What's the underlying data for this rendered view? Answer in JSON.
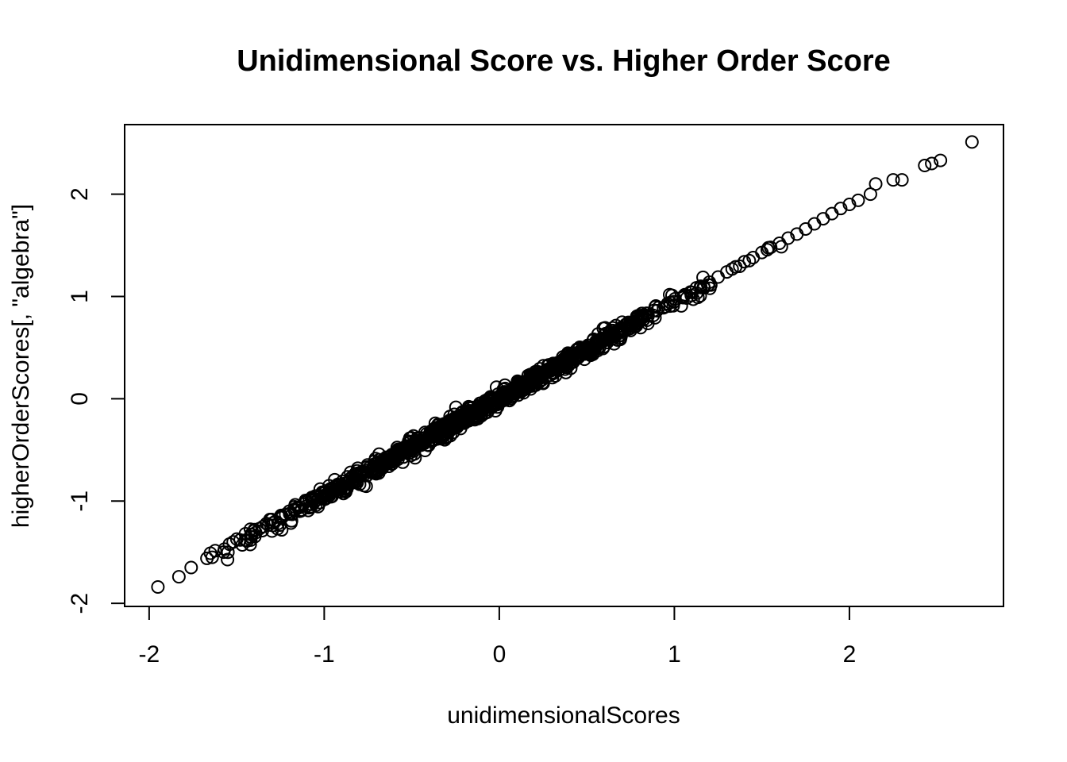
{
  "chart_data": {
    "type": "scatter",
    "title": "Unidimensional Score vs. Higher Order Score",
    "xlabel": "unidimensionalScores",
    "ylabel": "higherOrderScores[, \"algebra\"]",
    "xlim": [
      -2.14,
      2.88
    ],
    "ylim": [
      -2.03,
      2.68
    ],
    "xticks": [
      -2,
      -1,
      0,
      1,
      2
    ],
    "yticks": [
      -2,
      -1,
      0,
      1,
      2
    ],
    "xtick_labels": [
      "-2",
      "-1",
      "0",
      "1",
      "2"
    ],
    "ytick_labels": [
      "-2",
      "-1",
      "0",
      "1",
      "2"
    ],
    "marker": "open-circle",
    "color": "#000000",
    "fit_summary": {
      "slope": 0.95,
      "intercept": 0.0,
      "n": 1000
    },
    "x": [
      -1.95,
      -1.83,
      -1.76,
      -1.67,
      -1.65,
      -1.64,
      -1.57,
      -1.55,
      -1.52,
      -1.48,
      -1.45,
      -1.42,
      -1.4,
      -1.37,
      -1.35,
      -1.33,
      -1.3,
      -1.28,
      -1.25,
      -1.22,
      -1.2,
      -1.17,
      -1.15,
      -1.12,
      -1.1,
      -1.07,
      -1.05,
      -1.02,
      -1.0,
      -0.97,
      -0.95,
      -0.92,
      -0.9,
      -0.87,
      -0.85,
      -0.82,
      -0.8,
      -0.77,
      -0.75,
      -0.72,
      -0.7,
      -0.67,
      -0.65,
      -0.62,
      -0.6,
      -0.57,
      -0.55,
      -0.52,
      -0.5,
      -0.47,
      -0.45,
      -0.42,
      -0.4,
      -0.37,
      -0.35,
      -0.32,
      -0.3,
      -0.27,
      -0.25,
      -0.22,
      -0.2,
      -0.17,
      -0.15,
      -0.12,
      -0.1,
      -0.08,
      -0.05,
      -0.02,
      0.0,
      0.03,
      0.05,
      0.08,
      0.1,
      0.13,
      0.15,
      0.18,
      0.2,
      0.23,
      0.25,
      0.28,
      0.3,
      0.33,
      0.35,
      0.38,
      0.4,
      0.43,
      0.45,
      0.48,
      0.5,
      0.53,
      0.55,
      0.58,
      0.6,
      0.65,
      0.7,
      0.75,
      0.8,
      0.85,
      0.9,
      0.95,
      1.0,
      1.05,
      1.1,
      1.15,
      1.2,
      1.25,
      1.3,
      1.35,
      1.4,
      1.45,
      1.5,
      1.55,
      1.6,
      1.65,
      1.7,
      1.75,
      1.8,
      1.85,
      1.9,
      1.95,
      2.0,
      2.05,
      2.12,
      2.15,
      2.25,
      2.3,
      2.43,
      2.47,
      2.52,
      2.7
    ],
    "y": [
      -1.84,
      -1.74,
      -1.65,
      -1.56,
      -1.51,
      -1.55,
      -1.47,
      -1.5,
      -1.4,
      -1.38,
      -1.32,
      -1.35,
      -1.29,
      -1.27,
      -1.25,
      -1.22,
      -1.18,
      -1.2,
      -1.15,
      -1.13,
      -1.1,
      -1.08,
      -1.06,
      -1.03,
      -1.0,
      -0.98,
      -0.95,
      -0.95,
      -0.92,
      -0.9,
      -0.88,
      -0.85,
      -0.84,
      -0.82,
      -0.78,
      -0.76,
      -0.74,
      -0.72,
      -0.7,
      -0.68,
      -0.66,
      -0.64,
      -0.6,
      -0.59,
      -0.57,
      -0.55,
      -0.52,
      -0.5,
      -0.49,
      -0.46,
      -0.43,
      -0.41,
      -0.38,
      -0.36,
      -0.33,
      -0.31,
      -0.3,
      -0.26,
      -0.24,
      -0.2,
      -0.19,
      -0.16,
      -0.14,
      -0.12,
      -0.09,
      -0.07,
      -0.05,
      -0.02,
      0.0,
      0.03,
      0.04,
      0.08,
      0.11,
      0.12,
      0.15,
      0.17,
      0.19,
      0.22,
      0.23,
      0.27,
      0.29,
      0.31,
      0.33,
      0.36,
      0.39,
      0.4,
      0.42,
      0.46,
      0.48,
      0.5,
      0.52,
      0.56,
      0.57,
      0.62,
      0.67,
      0.71,
      0.76,
      0.81,
      0.86,
      0.9,
      0.95,
      1.0,
      1.04,
      1.1,
      1.14,
      1.19,
      1.24,
      1.29,
      1.34,
      1.38,
      1.43,
      1.48,
      1.52,
      1.57,
      1.61,
      1.66,
      1.71,
      1.76,
      1.81,
      1.86,
      1.9,
      1.94,
      2.0,
      2.1,
      2.14,
      2.14,
      2.28,
      2.3,
      2.33,
      2.51
    ],
    "points": []
  }
}
